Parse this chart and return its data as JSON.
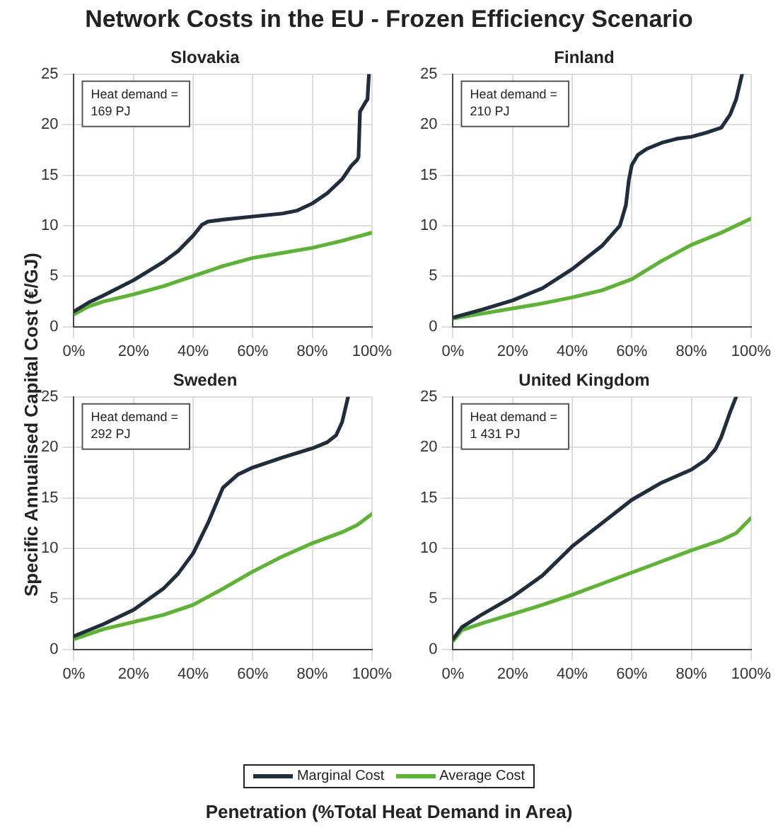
{
  "chart_data": [
    {
      "type": "line",
      "title": "Slovakia",
      "annotations": [
        "Network Costs in the EU - Frozen Efficiency Scenario",
        "Heat demand =\n169 PJ"
      ],
      "ylabel": "Specific Annualised Capital Cost (€/GJ)",
      "legend": "bottom",
      "xlim": [
        0,
        100
      ],
      "ylim": [
        0,
        25
      ],
      "xticks": [
        {
          "value": 0,
          "label": "0%"
        },
        {
          "value": 20,
          "label": "20%"
        },
        {
          "value": 40,
          "label": "40%"
        },
        {
          "value": 60,
          "label": "60%"
        },
        {
          "value": 80,
          "label": "80%"
        },
        {
          "value": 100,
          "label": "100%"
        }
      ],
      "yticks": [
        0,
        5,
        10,
        15,
        20,
        25
      ],
      "grid": true,
      "line_style": "solid",
      "marker": "none",
      "series": [
        {
          "name": "Marginal Cost",
          "color": "#1f2d3d",
          "x": [
            0,
            5,
            10,
            20,
            30,
            35,
            40,
            43,
            45,
            50,
            60,
            70,
            75,
            80,
            85,
            90,
            93,
            95,
            95.5,
            96,
            97,
            98,
            98.5,
            99
          ],
          "values": [
            1.5,
            2.4,
            3.1,
            4.6,
            6.4,
            7.5,
            9.0,
            10.1,
            10.4,
            10.6,
            10.9,
            11.2,
            11.5,
            12.2,
            13.2,
            14.6,
            15.9,
            16.5,
            16.8,
            21.3,
            21.8,
            22.3,
            22.5,
            25
          ]
        },
        {
          "name": "Average Cost",
          "color": "#5cb531",
          "x": [
            0,
            5,
            10,
            20,
            30,
            40,
            50,
            60,
            70,
            80,
            90,
            100
          ],
          "values": [
            1.2,
            2.0,
            2.5,
            3.2,
            4.0,
            5.0,
            6.0,
            6.8,
            7.3,
            7.8,
            8.5,
            9.3
          ]
        }
      ]
    },
    {
      "type": "line",
      "title": "Finland",
      "annotations": [
        "Heat demand =\n210 PJ"
      ],
      "xlim": [
        0,
        100
      ],
      "ylim": [
        0,
        25
      ],
      "xticks": [
        {
          "value": 0,
          "label": "0%"
        },
        {
          "value": 20,
          "label": "20%"
        },
        {
          "value": 40,
          "label": "40%"
        },
        {
          "value": 60,
          "label": "60%"
        },
        {
          "value": 80,
          "label": "80%"
        },
        {
          "value": 100,
          "label": "100%"
        }
      ],
      "yticks": [
        0,
        5,
        10,
        15,
        20,
        25
      ],
      "grid": true,
      "line_style": "solid",
      "marker": "none",
      "series": [
        {
          "color": "#1f2d3d",
          "x": [
            0,
            10,
            20,
            30,
            40,
            50,
            56,
            58,
            59,
            60,
            62,
            65,
            70,
            75,
            80,
            85,
            90,
            93,
            95,
            97
          ],
          "values": [
            0.9,
            1.7,
            2.6,
            3.8,
            5.7,
            8.0,
            10.0,
            12,
            14.5,
            16.0,
            17,
            17.6,
            18.2,
            18.6,
            18.8,
            19.2,
            19.7,
            21,
            22.5,
            25
          ]
        },
        {
          "color": "#5cb531",
          "x": [
            0,
            10,
            20,
            30,
            40,
            50,
            60,
            70,
            80,
            90,
            100
          ],
          "values": [
            0.8,
            1.3,
            1.8,
            2.3,
            2.9,
            3.6,
            4.7,
            6.5,
            8.1,
            9.3,
            10.7
          ]
        }
      ]
    },
    {
      "type": "line",
      "title": "Sweden",
      "annotations": [
        "Heat demand =\n292 PJ"
      ],
      "xlabel": "Penetration (%Total Heat Demand in Area)",
      "xlim": [
        0,
        100
      ],
      "ylim": [
        0,
        25
      ],
      "xticks": [
        {
          "value": 0,
          "label": "0%"
        },
        {
          "value": 20,
          "label": "20%"
        },
        {
          "value": 40,
          "label": "40%"
        },
        {
          "value": 60,
          "label": "60%"
        },
        {
          "value": 80,
          "label": "80%"
        },
        {
          "value": 100,
          "label": "100%"
        }
      ],
      "yticks": [
        0,
        5,
        10,
        15,
        20,
        25
      ],
      "grid": true,
      "line_style": "solid",
      "marker": "none",
      "series": [
        {
          "color": "#1f2d3d",
          "x": [
            0,
            10,
            20,
            30,
            35,
            40,
            45,
            50,
            55,
            60,
            70,
            80,
            85,
            88,
            90,
            92
          ],
          "values": [
            1.3,
            2.5,
            3.9,
            6.0,
            7.5,
            9.5,
            12.5,
            16.0,
            17.3,
            18.0,
            19.0,
            19.9,
            20.5,
            21.2,
            22.5,
            25
          ]
        },
        {
          "color": "#5cb531",
          "x": [
            0,
            10,
            20,
            30,
            40,
            50,
            60,
            70,
            80,
            90,
            95,
            100
          ],
          "values": [
            1.0,
            2.0,
            2.7,
            3.4,
            4.4,
            6.0,
            7.7,
            9.2,
            10.5,
            11.6,
            12.3,
            13.4
          ]
        }
      ]
    },
    {
      "type": "line",
      "title": "United Kingdom",
      "annotations": [
        "Heat demand =\n1 431 PJ"
      ],
      "xlim": [
        0,
        100
      ],
      "ylim": [
        0,
        25
      ],
      "xticks": [
        {
          "value": 0,
          "label": "0%"
        },
        {
          "value": 20,
          "label": "20%"
        },
        {
          "value": 40,
          "label": "40%"
        },
        {
          "value": 60,
          "label": "60%"
        },
        {
          "value": 80,
          "label": "80%"
        },
        {
          "value": 100,
          "label": "100%"
        }
      ],
      "yticks": [
        0,
        5,
        10,
        15,
        20,
        25
      ],
      "grid": true,
      "line_style": "solid",
      "marker": "none",
      "series": [
        {
          "color": "#1f2d3d",
          "x": [
            0,
            3,
            10,
            20,
            30,
            40,
            50,
            60,
            70,
            80,
            85,
            88,
            90,
            93,
            95
          ],
          "values": [
            1.0,
            2.2,
            3.5,
            5.2,
            7.3,
            10.2,
            12.5,
            14.8,
            16.5,
            17.8,
            18.8,
            19.8,
            21,
            23.5,
            25
          ]
        },
        {
          "color": "#5cb531",
          "x": [
            0,
            3,
            10,
            20,
            30,
            40,
            50,
            60,
            70,
            80,
            90,
            95,
            100
          ],
          "values": [
            0.8,
            1.9,
            2.6,
            3.5,
            4.4,
            5.4,
            6.5,
            7.6,
            8.7,
            9.8,
            10.8,
            11.5,
            13.0
          ]
        }
      ]
    }
  ]
}
